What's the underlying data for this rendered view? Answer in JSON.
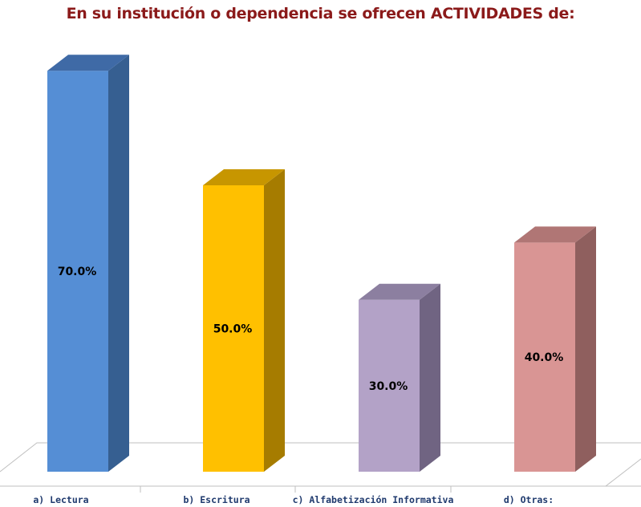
{
  "chart_data": {
    "type": "bar",
    "title": "En su institución o dependencia se ofrecen ACTIVIDADES de:",
    "categories": [
      "a) Lectura",
      "b) Escritura",
      "c) Alfabetización Informativa",
      "d) Otras:"
    ],
    "values": [
      70.0,
      50.0,
      30.0,
      40.0
    ],
    "value_labels": [
      "70.0%",
      "50.0%",
      "30.0%",
      "40.0%"
    ],
    "ylim": [
      0,
      70
    ],
    "grid": false,
    "legend": "none",
    "style": "3d-column",
    "colors": [
      {
        "front": "#558ED5",
        "side": "#365F91",
        "top": "#3F6AA6"
      },
      {
        "front": "#FFC000",
        "side": "#A67C00",
        "top": "#C79600"
      },
      {
        "front": "#B3A2C7",
        "side": "#706482",
        "top": "#8C7FA0"
      },
      {
        "front": "#D99594",
        "side": "#8F5F5E",
        "top": "#B07675"
      }
    ]
  }
}
